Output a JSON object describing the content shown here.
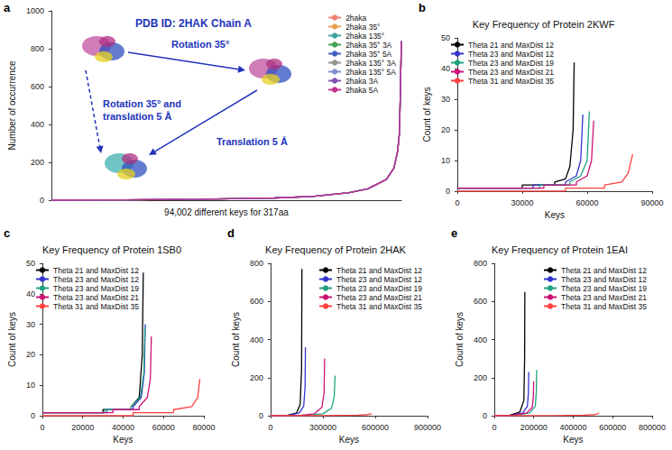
{
  "chart_data": [
    {
      "label": "a",
      "type": "line",
      "ylabel": "Number of occurrence",
      "xlabel": "94,002 different keys for 317aa",
      "xlim": [
        0,
        94002
      ],
      "ylim": [
        0,
        1000
      ],
      "yticks": [
        0,
        200,
        400,
        600,
        800,
        1000
      ],
      "tick_labels": "y",
      "grid": false,
      "legend": "upper right",
      "annotations": [
        "PDB ID: 2HAK Chain A",
        "Rotation 35°",
        "Rotation 35° and translation 5 Å",
        "Translation 5 Å"
      ],
      "x": [
        0,
        20000,
        40000,
        60000,
        70000,
        80000,
        85000,
        90000,
        92000,
        93000,
        93500,
        94002
      ],
      "series": [
        {
          "name": "2haka",
          "color": "#f08070",
          "values": [
            0,
            2,
            5,
            12,
            20,
            40,
            60,
            110,
            170,
            260,
            360,
            840
          ]
        },
        {
          "name": "2haka 35°",
          "color": "#e8a050",
          "values": [
            0,
            2,
            5,
            12,
            20,
            40,
            60,
            110,
            170,
            260,
            360,
            838
          ]
        },
        {
          "name": "2haka 135°",
          "color": "#40a0a0",
          "values": [
            0,
            2,
            5,
            12,
            20,
            40,
            60,
            110,
            170,
            260,
            360,
            836
          ]
        },
        {
          "name": "2haka 35° 3A",
          "color": "#40a050",
          "values": [
            0,
            2,
            5,
            12,
            20,
            40,
            60,
            110,
            170,
            260,
            360,
            840
          ]
        },
        {
          "name": "2haka 35° 5A",
          "color": "#4060c0",
          "values": [
            0,
            2,
            5,
            12,
            20,
            40,
            60,
            110,
            170,
            260,
            360,
            838
          ]
        },
        {
          "name": "2haka 135° 3A",
          "color": "#909090",
          "values": [
            0,
            2,
            5,
            12,
            20,
            40,
            60,
            110,
            170,
            260,
            360,
            836
          ]
        },
        {
          "name": "2haka 135° 5A",
          "color": "#8090d0",
          "values": [
            0,
            2,
            5,
            12,
            20,
            40,
            60,
            110,
            170,
            260,
            360,
            840
          ]
        },
        {
          "name": "2haka 3A",
          "color": "#8050b0",
          "values": [
            0,
            2,
            5,
            12,
            20,
            40,
            60,
            110,
            170,
            260,
            360,
            838
          ]
        },
        {
          "name": "2haka 5A",
          "color": "#c03090",
          "values": [
            0,
            2,
            5,
            12,
            20,
            40,
            60,
            110,
            170,
            260,
            360,
            840
          ]
        }
      ]
    },
    {
      "label": "b",
      "type": "line",
      "title": "Key Frequency of Protein 2KWF",
      "xlabel": "Keys",
      "ylabel": "Count of keys",
      "xlim": [
        0,
        90000
      ],
      "xticks": [
        0,
        30000,
        60000,
        90000
      ],
      "ylim": [
        0,
        50
      ],
      "yticks": [
        0,
        10,
        20,
        30,
        40,
        50
      ],
      "grid": false,
      "legend": "upper left",
      "series": [
        {
          "name": "Theta 21 and MaxDist 12",
          "color": "#000000",
          "x": [
            0,
            30000,
            30000,
            45000,
            45000,
            50000,
            52000,
            53500,
            54000
          ],
          "values": [
            1,
            1,
            2,
            2,
            3,
            4,
            8,
            20,
            42
          ]
        },
        {
          "name": "Theta 23 and MaxDist 12",
          "color": "#3333cc",
          "x": [
            0,
            35000,
            35000,
            50000,
            50000,
            55000,
            57000,
            58000
          ],
          "values": [
            1,
            1,
            2,
            2,
            3,
            5,
            10,
            25
          ]
        },
        {
          "name": "Theta 23 and MaxDist 19",
          "color": "#20a080",
          "x": [
            0,
            38000,
            38000,
            52000,
            52000,
            57000,
            60000,
            61000
          ],
          "values": [
            1,
            1,
            2,
            2,
            3,
            5,
            10,
            26
          ]
        },
        {
          "name": "Theta 23 and MaxDist 21",
          "color": "#cc1177",
          "x": [
            0,
            40000,
            40000,
            55000,
            55000,
            60000,
            62000,
            63000
          ],
          "values": [
            1,
            1,
            2,
            2,
            3,
            5,
            10,
            23
          ]
        },
        {
          "name": "Theta 31 and MaxDist 35",
          "color": "#ff4040",
          "x": [
            0,
            50000,
            50000,
            68000,
            68000,
            76000,
            79000,
            81000
          ],
          "values": [
            0,
            0,
            1,
            1,
            2,
            3,
            6,
            12
          ]
        }
      ]
    },
    {
      "label": "c",
      "type": "line",
      "title": "Key Frequency of Protein 1SB0",
      "xlabel": "Keys",
      "ylabel": "Count of keys",
      "xlim": [
        0,
        80000
      ],
      "xticks": [
        0,
        20000,
        40000,
        60000,
        80000
      ],
      "ylim": [
        0,
        50
      ],
      "yticks": [
        0,
        10,
        20,
        30,
        40,
        50
      ],
      "grid": false,
      "legend": "upper left",
      "series": [
        {
          "name": "Theta 21 and MaxDist 12",
          "color": "#000000",
          "x": [
            0,
            30000,
            30000,
            44000,
            44000,
            48000,
            49500,
            50000
          ],
          "values": [
            1,
            1,
            2,
            2,
            3,
            6,
            20,
            47
          ]
        },
        {
          "name": "Theta 23 and MaxDist 12",
          "color": "#3333cc",
          "x": [
            0,
            32000,
            32000,
            45000,
            45000,
            49000,
            50500,
            51000
          ],
          "values": [
            1,
            1,
            2,
            2,
            3,
            6,
            14,
            30
          ]
        },
        {
          "name": "Theta 23 and MaxDist 19",
          "color": "#20a080",
          "x": [
            0,
            31000,
            31000,
            44000,
            44000,
            48500,
            50300,
            50800
          ],
          "values": [
            1,
            1,
            2,
            2,
            3,
            6,
            14,
            29
          ]
        },
        {
          "name": "Theta 23 and MaxDist 21",
          "color": "#cc1177",
          "x": [
            0,
            35000,
            35000,
            48000,
            48000,
            52000,
            53500,
            54000
          ],
          "values": [
            1,
            1,
            2,
            2,
            3,
            6,
            12,
            26
          ]
        },
        {
          "name": "Theta 31 and MaxDist 35",
          "color": "#ff4040",
          "x": [
            0,
            45000,
            45000,
            65000,
            65000,
            74000,
            77000,
            78000
          ],
          "values": [
            0,
            0,
            1,
            1,
            2,
            3,
            6,
            12
          ]
        }
      ]
    },
    {
      "label": "d",
      "type": "line",
      "title": "Key Frequency of Protein 2HAK",
      "xlabel": "Keys",
      "ylabel": "Count of keys",
      "xlim": [
        0,
        900000
      ],
      "xticks": [
        0,
        300000,
        600000,
        900000
      ],
      "ylim": [
        0,
        800
      ],
      "yticks": [
        0,
        200,
        400,
        600,
        800
      ],
      "grid": false,
      "legend": "upper right",
      "series": [
        {
          "name": "Theta 21 and MaxDist 12",
          "color": "#000000",
          "x": [
            0,
            100000,
            150000,
            170000,
            178000,
            180000
          ],
          "values": [
            0,
            3,
            15,
            60,
            250,
            770
          ]
        },
        {
          "name": "Theta 23 and MaxDist 12",
          "color": "#3333cc",
          "x": [
            0,
            110000,
            165000,
            190000,
            198000,
            200000
          ],
          "values": [
            0,
            3,
            15,
            50,
            150,
            360
          ]
        },
        {
          "name": "Theta 23 and MaxDist 19",
          "color": "#20a080",
          "x": [
            0,
            200000,
            300000,
            350000,
            365000,
            370000
          ],
          "values": [
            0,
            2,
            10,
            40,
            100,
            210
          ]
        },
        {
          "name": "Theta 23 and MaxDist 21",
          "color": "#cc1177",
          "x": [
            0,
            170000,
            250000,
            295000,
            307000,
            310000
          ],
          "values": [
            0,
            2,
            10,
            45,
            120,
            300
          ]
        },
        {
          "name": "Theta 31 and MaxDist 35",
          "color": "#ff4040",
          "x": [
            0,
            300000,
            500000,
            560000,
            580000
          ],
          "values": [
            0,
            1,
            3,
            6,
            10
          ]
        }
      ]
    },
    {
      "label": "e",
      "type": "line",
      "title": "Key Frequency of Protein 1EAI",
      "xlabel": "Keys",
      "ylabel": "Count of keys",
      "xlim": [
        0,
        800000
      ],
      "xticks": [
        0,
        200000,
        400000,
        600000,
        800000
      ],
      "ylim": [
        0,
        800
      ],
      "yticks": [
        0,
        200,
        400,
        600,
        800
      ],
      "grid": false,
      "legend": "upper right",
      "series": [
        {
          "name": "Theta 21 and MaxDist 12",
          "color": "#000000",
          "x": [
            0,
            80000,
            130000,
            150000,
            154000,
            155000
          ],
          "values": [
            0,
            3,
            20,
            80,
            300,
            650
          ]
        },
        {
          "name": "Theta 23 and MaxDist 12",
          "color": "#3333cc",
          "x": [
            0,
            90000,
            145000,
            168000,
            173000,
            175000
          ],
          "values": [
            0,
            3,
            15,
            50,
            120,
            230
          ]
        },
        {
          "name": "Theta 23 and MaxDist 19",
          "color": "#20a080",
          "x": [
            0,
            110000,
            180000,
            208000,
            213000,
            215000
          ],
          "values": [
            0,
            3,
            15,
            50,
            120,
            240
          ]
        },
        {
          "name": "Theta 23 and MaxDist 21",
          "color": "#cc1177",
          "x": [
            0,
            100000,
            165000,
            193000,
            198000,
            200000
          ],
          "values": [
            0,
            3,
            15,
            45,
            100,
            180
          ]
        },
        {
          "name": "Theta 31 and MaxDist 35",
          "color": "#ff4040",
          "x": [
            0,
            300000,
            450000,
            510000,
            525000,
            530000
          ],
          "values": [
            0,
            1,
            3,
            6,
            10,
            15
          ]
        }
      ]
    }
  ]
}
